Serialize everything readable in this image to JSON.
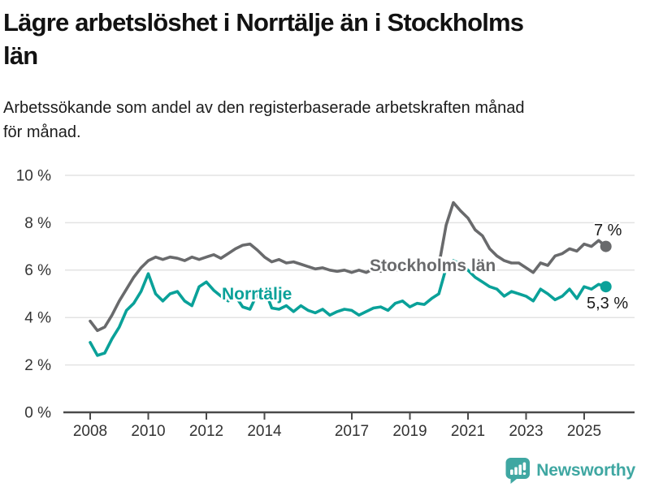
{
  "header": {
    "title_lines": [
      "Lägre arbetslöshet i Norrtälje än i Stockholms",
      "län"
    ],
    "subtitle_lines": [
      "Arbetssökande som andel av den registerbaserade arbetskraften månad",
      "för månad."
    ]
  },
  "chart_data": {
    "type": "line",
    "title": "Lägre arbetslöshet i Norrtälje än i Stockholms län",
    "subtitle": "Arbetssökande som andel av den registerbaserade arbetskraften månad för månad.",
    "xlabel": "",
    "ylabel": "",
    "unit": "%",
    "xlim": [
      2008,
      2025.75
    ],
    "ylim": [
      0,
      10
    ],
    "grid": "horizontal",
    "legend_position": "inline-labels",
    "x_start": 2008,
    "x_step_years": 0.25,
    "x_tick_labels": [
      "2008",
      "2010",
      "2012",
      "2014",
      "2017",
      "2019",
      "2021",
      "2023",
      "2025"
    ],
    "y_tick_labels": [
      "0 %",
      "2 %",
      "4 %",
      "6 %",
      "8 %",
      "10 %"
    ],
    "series": [
      {
        "key": "stockholms-lan",
        "name": "Stockholms län",
        "color": "#696a6c",
        "end_label": "7 %",
        "end_value": 7.0,
        "values": [
          3.85,
          3.45,
          3.6,
          4.1,
          4.7,
          5.2,
          5.7,
          6.1,
          6.4,
          6.55,
          6.45,
          6.55,
          6.5,
          6.4,
          6.55,
          6.45,
          6.55,
          6.65,
          6.5,
          6.7,
          6.9,
          7.05,
          7.1,
          6.85,
          6.55,
          6.35,
          6.45,
          6.3,
          6.35,
          6.25,
          6.15,
          6.05,
          6.1,
          6.0,
          5.95,
          6.0,
          5.9,
          6.0,
          5.9,
          6.05,
          5.95,
          6.1,
          6.0,
          6.05,
          6.0,
          6.1,
          6.05,
          6.15,
          6.2,
          7.9,
          8.85,
          8.5,
          8.2,
          7.7,
          7.45,
          6.9,
          6.6,
          6.4,
          6.3,
          6.3,
          6.1,
          5.9,
          6.3,
          6.2,
          6.6,
          6.7,
          6.9,
          6.8,
          7.1,
          7.0,
          7.25,
          7.0
        ]
      },
      {
        "key": "norrtalje",
        "name": "Norrtälje",
        "color": "#0aa199",
        "end_label": "5,3 %",
        "end_value": 5.3,
        "values": [
          2.95,
          2.4,
          2.5,
          3.1,
          3.6,
          4.3,
          4.6,
          5.1,
          5.85,
          5.0,
          4.7,
          5.0,
          5.1,
          4.7,
          4.5,
          5.3,
          5.5,
          5.15,
          4.9,
          4.7,
          4.9,
          4.45,
          4.35,
          5.0,
          5.2,
          4.4,
          4.35,
          4.5,
          4.25,
          4.5,
          4.3,
          4.2,
          4.35,
          4.1,
          4.25,
          4.35,
          4.3,
          4.1,
          4.25,
          4.4,
          4.45,
          4.3,
          4.6,
          4.7,
          4.45,
          4.6,
          4.55,
          4.8,
          5.0,
          6.1,
          6.4,
          6.25,
          6.0,
          5.7,
          5.5,
          5.3,
          5.2,
          4.9,
          5.1,
          5.0,
          4.9,
          4.7,
          5.2,
          5.0,
          4.75,
          4.9,
          5.2,
          4.8,
          5.3,
          5.2,
          5.4,
          5.3
        ]
      }
    ]
  },
  "footer": {
    "brand": "Newsworthy",
    "logo_color": "#3fa7a2"
  }
}
